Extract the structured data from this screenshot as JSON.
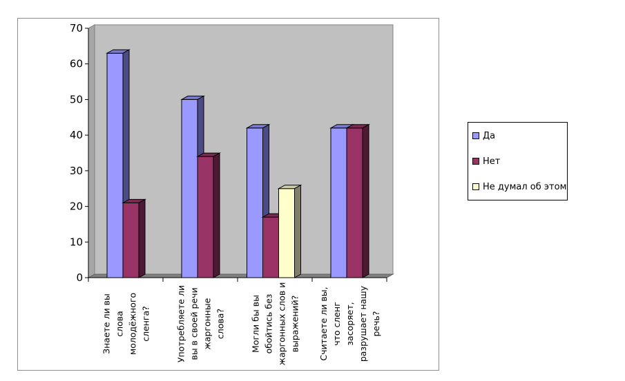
{
  "chart_data": {
    "type": "bar",
    "categories": [
      "Знаете ли вы слова молодёжного сленга?",
      "Употребляете ли вы в своей речи жаргонные слова?",
      "Могли бы вы обойтись без жаргонных слов и выражений?",
      "Считаете ли вы, что сленг засоряет, разрушает нашу речь?"
    ],
    "category_lines": [
      [
        "Знаете ли вы",
        "слова",
        "молодёжного",
        "сленга?"
      ],
      [
        "Употребляете ли",
        "вы в своей речи",
        "жаргонные",
        "слова?"
      ],
      [
        "Могли бы вы",
        "обойтись без",
        "жаргонных слов и",
        "выражений?"
      ],
      [
        "Считаете ли вы,",
        "что сленг",
        "засоряет,",
        "разрушает нашу",
        "речь?"
      ]
    ],
    "series": [
      {
        "name": "Да",
        "values": [
          63,
          50,
          42,
          42
        ],
        "color": "#9999ff",
        "side": "#4b4b85",
        "top": "#7a7acc"
      },
      {
        "name": "Нет",
        "values": [
          21,
          34,
          17,
          42
        ],
        "color": "#993366",
        "side": "#4d1a33",
        "top": "#7a2952"
      },
      {
        "name": "Не думал об этом",
        "values": [
          null,
          null,
          25,
          null
        ],
        "color": "#ffffcc",
        "side": "#80806a",
        "top": "#ccccaa"
      }
    ],
    "ylim": [
      0,
      70
    ],
    "yticks": [
      0,
      10,
      20,
      30,
      40,
      50,
      60,
      70
    ],
    "wall_color": "#c0c0c0",
    "floor_color": "#808080",
    "grid": false,
    "legend_position": "right"
  }
}
